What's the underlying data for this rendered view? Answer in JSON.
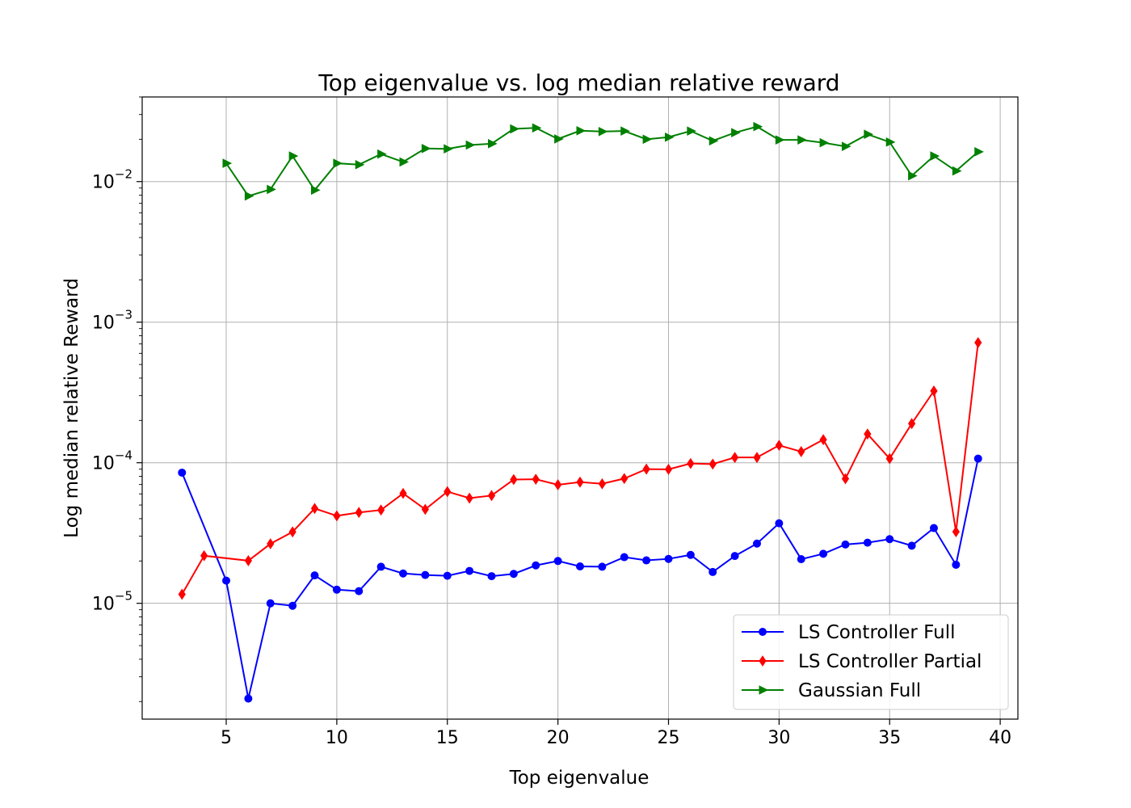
{
  "chart_data": {
    "type": "line",
    "title": "Top eigenvalue vs. log median relative reward",
    "xlabel": "Top eigenvalue",
    "ylabel": "Log median relative Reward",
    "y_scale": "log",
    "xlim": [
      1.2,
      40.8
    ],
    "ylim": [
      1.5e-06,
      0.04
    ],
    "x_ticks": [
      5,
      10,
      15,
      20,
      25,
      30,
      35,
      40
    ],
    "x_tick_labels": [
      "5",
      "10",
      "15",
      "20",
      "25",
      "30",
      "35",
      "40"
    ],
    "y_ticks": [
      1e-05,
      0.0001,
      0.001,
      0.01
    ],
    "y_tick_labels": [
      {
        "base": "10",
        "exp": "−5"
      },
      {
        "base": "10",
        "exp": "−4"
      },
      {
        "base": "10",
        "exp": "−3"
      },
      {
        "base": "10",
        "exp": "−2"
      }
    ],
    "grid": true,
    "legend_position": "lower-right",
    "series": [
      {
        "name": "LS Controller Full",
        "color": "#0000ff",
        "marker": "circle",
        "x": [
          3,
          5,
          6,
          7,
          8,
          9,
          10,
          11,
          12,
          13,
          14,
          15,
          16,
          17,
          18,
          19,
          20,
          21,
          22,
          23,
          24,
          25,
          26,
          27,
          28,
          29,
          30,
          31,
          32,
          33,
          34,
          35,
          36,
          37,
          38,
          39
        ],
        "values": [
          8.5e-05,
          1.45e-05,
          2.1e-06,
          1e-05,
          9.6e-06,
          1.58e-05,
          1.25e-05,
          1.22e-05,
          1.82e-05,
          1.63e-05,
          1.59e-05,
          1.57e-05,
          1.7e-05,
          1.56e-05,
          1.62e-05,
          1.86e-05,
          2e-05,
          1.83e-05,
          1.82e-05,
          2.13e-05,
          2.02e-05,
          2.07e-05,
          2.21e-05,
          1.67e-05,
          2.17e-05,
          2.66e-05,
          3.71e-05,
          2.06e-05,
          2.25e-05,
          2.62e-05,
          2.7e-05,
          2.86e-05,
          2.57e-05,
          3.43e-05,
          1.88e-05,
          0.000107
        ]
      },
      {
        "name": "LS Controller Partial",
        "color": "#ff0000",
        "marker": "diamond",
        "x": [
          3,
          4,
          6,
          7,
          8,
          9,
          10,
          11,
          12,
          13,
          14,
          15,
          16,
          17,
          18,
          19,
          20,
          21,
          22,
          23,
          24,
          25,
          26,
          27,
          28,
          29,
          30,
          31,
          32,
          33,
          34,
          35,
          36,
          37,
          38,
          39
        ],
        "values": [
          1.16e-05,
          2.18e-05,
          2.01e-05,
          2.65e-05,
          3.22e-05,
          4.73e-05,
          4.19e-05,
          4.43e-05,
          4.61e-05,
          6.05e-05,
          4.66e-05,
          6.23e-05,
          5.6e-05,
          5.84e-05,
          7.59e-05,
          7.63e-05,
          6.97e-05,
          7.28e-05,
          7.08e-05,
          7.72e-05,
          9.01e-05,
          8.98e-05,
          9.88e-05,
          9.78e-05,
          0.000109,
          0.000109,
          0.000133,
          0.00012,
          0.000146,
          7.69e-05,
          0.00016,
          0.000107,
          0.00019,
          0.000324,
          3.23e-05,
          0.000715
        ]
      },
      {
        "name": "Gaussian Full",
        "color": "#008000",
        "marker": "triangle-right",
        "x": [
          5,
          6,
          7,
          8,
          9,
          10,
          11,
          12,
          13,
          14,
          15,
          16,
          17,
          18,
          19,
          20,
          21,
          22,
          23,
          24,
          25,
          26,
          27,
          28,
          29,
          30,
          31,
          32,
          33,
          34,
          35,
          36,
          37,
          38,
          39
        ],
        "values": [
          0.0135,
          0.0079,
          0.0088,
          0.0152,
          0.0087,
          0.0135,
          0.0132,
          0.0157,
          0.0138,
          0.0172,
          0.0171,
          0.0182,
          0.0186,
          0.0237,
          0.0241,
          0.0201,
          0.023,
          0.0227,
          0.0229,
          0.02,
          0.0207,
          0.0229,
          0.0195,
          0.0223,
          0.0246,
          0.0198,
          0.0198,
          0.0189,
          0.0178,
          0.0217,
          0.0191,
          0.011,
          0.0152,
          0.0119,
          0.0163
        ]
      }
    ]
  }
}
